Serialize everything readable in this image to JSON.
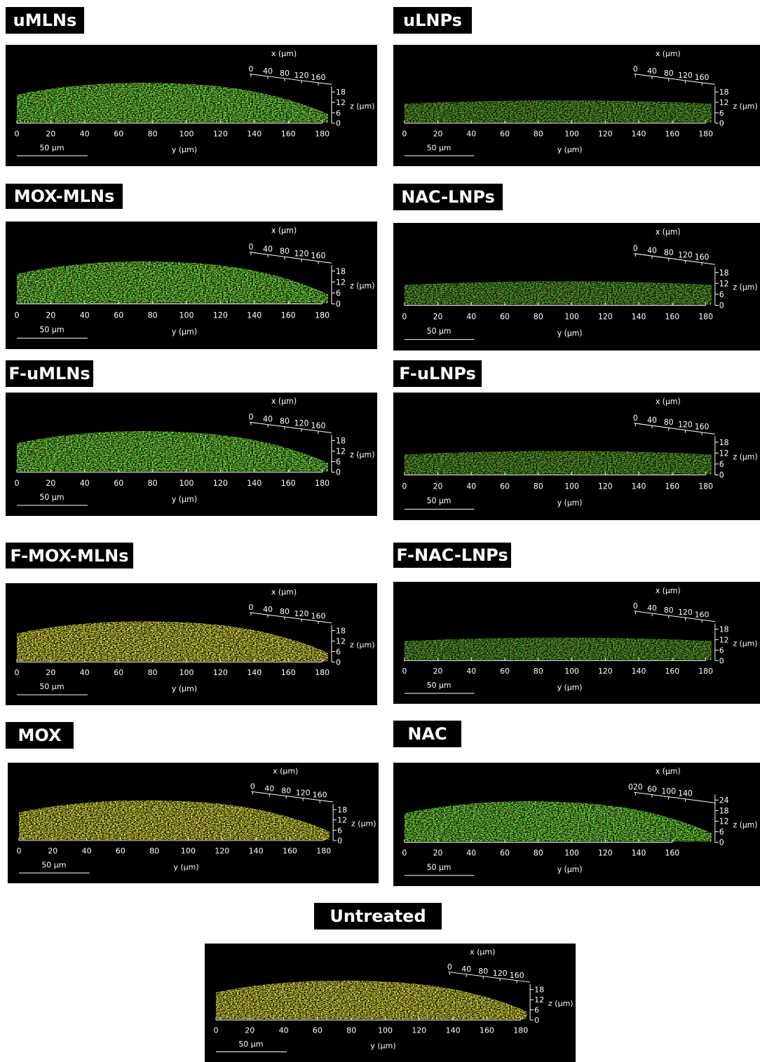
{
  "panels": [
    {
      "label": "uMLNs",
      "y_ticks": [
        "0",
        "20",
        "40",
        "60",
        "80",
        "100",
        "120",
        "140",
        "160",
        "180"
      ],
      "x_ticks": [
        "0",
        "40",
        "80",
        "120",
        "160"
      ],
      "z_ticks": [
        "0",
        "6",
        "12",
        "18"
      ]
    },
    {
      "label": "uLNPs",
      "y_ticks": [
        "0",
        "20",
        "40",
        "60",
        "80",
        "100",
        "120",
        "140",
        "160",
        "180"
      ],
      "x_ticks": [
        "0",
        "40",
        "80",
        "120",
        "160"
      ],
      "z_ticks": [
        "0",
        "6",
        "12",
        "18"
      ]
    },
    {
      "label": "MOX-MLNs",
      "y_ticks": [
        "0",
        "20",
        "40",
        "60",
        "80",
        "100",
        "120",
        "140",
        "160",
        "180"
      ],
      "x_ticks": [
        "0",
        "40",
        "80",
        "120",
        "160"
      ],
      "z_ticks": [
        "0",
        "6",
        "12",
        "18"
      ]
    },
    {
      "label": "NAC-LNPs",
      "y_ticks": [
        "0",
        "20",
        "40",
        "60",
        "80",
        "100",
        "120",
        "140",
        "160",
        "180"
      ],
      "x_ticks": [
        "0",
        "40",
        "80",
        "120",
        "160"
      ],
      "z_ticks": [
        "0",
        "6",
        "12",
        "18"
      ]
    },
    {
      "label": "F-uMLNs",
      "y_ticks": [
        "0",
        "20",
        "40",
        "60",
        "80",
        "100",
        "120",
        "140",
        "160",
        "180"
      ],
      "x_ticks": [
        "0",
        "40",
        "80",
        "120",
        "160"
      ],
      "z_ticks": [
        "0",
        "6",
        "12",
        "18"
      ]
    },
    {
      "label": "F-uLNPs",
      "y_ticks": [
        "0",
        "20",
        "40",
        "60",
        "80",
        "100",
        "120",
        "140",
        "160",
        "180"
      ],
      "x_ticks": [
        "0",
        "40",
        "80",
        "120",
        "160"
      ],
      "z_ticks": [
        "0",
        "6",
        "12",
        "18"
      ]
    },
    {
      "label": "F-MOX-MLNs",
      "y_ticks": [
        "0",
        "20",
        "40",
        "60",
        "80",
        "100",
        "120",
        "140",
        "160",
        "180"
      ],
      "x_ticks": [
        "0",
        "40",
        "80",
        "120",
        "160"
      ],
      "z_ticks": [
        "0",
        "6",
        "12",
        "18"
      ]
    },
    {
      "label": "F-NAC-LNPs",
      "y_ticks": [
        "0",
        "20",
        "40",
        "60",
        "80",
        "100",
        "120",
        "140",
        "160",
        "180"
      ],
      "x_ticks": [
        "0",
        "40",
        "80",
        "120",
        "160"
      ],
      "z_ticks": [
        "0",
        "6",
        "12",
        "18"
      ]
    },
    {
      "label": "MOX",
      "y_ticks": [
        "0",
        "20",
        "40",
        "60",
        "80",
        "100",
        "120",
        "140",
        "160",
        "180"
      ],
      "x_ticks": [
        "0",
        "40",
        "80",
        "120",
        "160"
      ],
      "z_ticks": [
        "0",
        "6",
        "12",
        "18"
      ]
    },
    {
      "label": "NAC",
      "y_ticks": [
        "0",
        "20",
        "40",
        "60",
        "80",
        "100",
        "120",
        "140",
        "160"
      ],
      "x_ticks": [
        "020",
        "60",
        "100",
        "140"
      ],
      "z_ticks": [
        "0",
        "6",
        "12",
        "18",
        "24"
      ]
    },
    {
      "label": "Untreated",
      "y_ticks": [
        "0",
        "20",
        "40",
        "60",
        "80",
        "100",
        "120",
        "140",
        "160",
        "180"
      ],
      "x_ticks": [
        "0",
        "40",
        "80",
        "120",
        "160"
      ],
      "z_ticks": [
        "0",
        "6",
        "12",
        "18"
      ]
    }
  ],
  "axis_titles": {
    "x": "x (µm)",
    "y": "y (µm)",
    "z": "z (µm)"
  },
  "scale_bar": "50 µm"
}
